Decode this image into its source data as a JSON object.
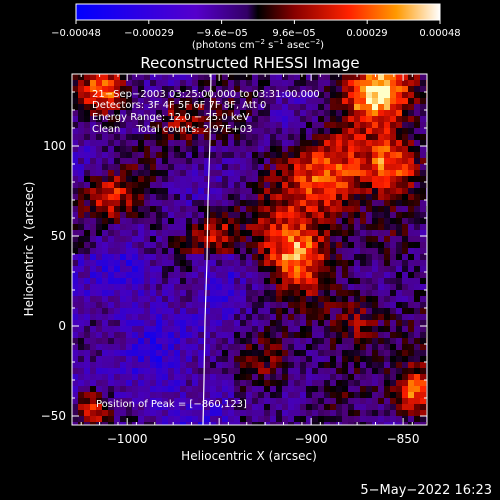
{
  "chart_data": {
    "type": "heatmap",
    "title": "Reconstructed RHESSI Image",
    "xlabel": "Heliocentric X (arcsec)",
    "ylabel": "Heliocentric Y (arcsec)",
    "xlim": [
      -1030,
      -837
    ],
    "ylim": [
      -55,
      140
    ],
    "x_ticks": [
      -1000,
      -950,
      -900,
      -850
    ],
    "x_tick_labels": [
      "−1000",
      "−950",
      "−900",
      "−850"
    ],
    "y_ticks": [
      -50,
      0,
      50,
      100
    ],
    "y_tick_labels": [
      "−50",
      "0",
      "50",
      "100"
    ],
    "colorbar": {
      "range": [
        -0.00048,
        0.00048
      ],
      "tick_labels": [
        "−0.00048",
        "−0.00029",
        "−9.6e−05",
        "9.6e−05",
        "0.00029",
        "0.00048"
      ],
      "units_base": "(photons cm",
      "units_exp1": "−2",
      "units_mid1": " s",
      "units_exp2": "−1",
      "units_mid2": " asec",
      "units_exp3": "−2",
      "units_end": ")"
    },
    "annotations": [
      "21−Sep−2003 03:25:00.000 to 03:31:00.000",
      "Detectors: 3F 4F 5F 6F 7F 8F, Att 0",
      "Energy Range: 12.0 − 25.0 keV",
      "Clean     Total counts: 2.97E+03"
    ],
    "peak_label": "Position of Peak = [−860,123]",
    "peak": [
      -860,
      123
    ]
  },
  "footer": {
    "date": "5−May−2022 16:23"
  }
}
